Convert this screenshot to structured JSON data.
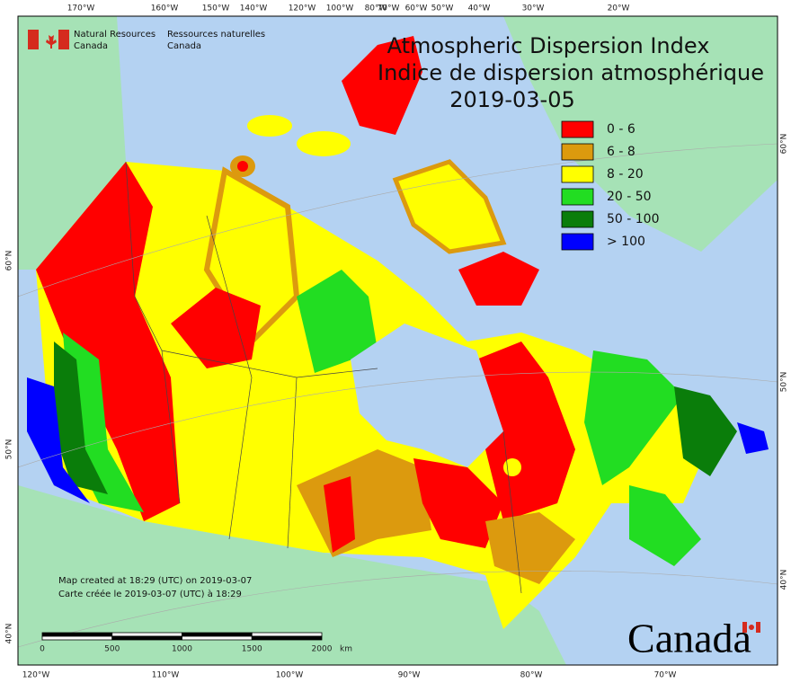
{
  "header": {
    "agency_en": [
      "Natural Resources",
      "Canada"
    ],
    "agency_fr": [
      "Ressources naturelles",
      "Canada"
    ]
  },
  "title": {
    "en": "Atmospheric Dispersion Index",
    "fr": "Indice de dispersion atmosphérique",
    "date": "2019-03-05"
  },
  "legend": [
    {
      "label": "0 - 6",
      "color": "#ff0000"
    },
    {
      "label": "6 - 8",
      "color": "#dc9a0e"
    },
    {
      "label": "8 - 20",
      "color": "#ffff00"
    },
    {
      "label": "20 - 50",
      "color": "#22dd22"
    },
    {
      "label": "50 - 100",
      "color": "#0a7d0a"
    },
    {
      "label": "> 100",
      "color": "#0000ff"
    }
  ],
  "top_longitude_labels": [
    "170°W",
    "160°W",
    "150°W",
    "140°W",
    "120°W",
    "100°W",
    "80°W",
    "70°W",
    "60°W",
    "50°W",
    "40°W",
    "30°W",
    "20°W"
  ],
  "bottom_longitude_labels": [
    "120°W",
    "110°W",
    "100°W",
    "90°W",
    "80°W",
    "70°W"
  ],
  "left_latitude_labels": [
    "60°N",
    "50°N",
    "40°N"
  ],
  "right_latitude_labels": [
    "60°N",
    "50°N",
    "40°N"
  ],
  "credits": [
    "Map created at 18:29 (UTC) on 2019-03-07",
    "Carte créée le 2019-03-07 (UTC) à 18:29"
  ],
  "scale_bar": {
    "labels": [
      "0",
      "500",
      "1000",
      "1500",
      "2000"
    ],
    "unit": "km"
  },
  "wordmark": "Canada"
}
